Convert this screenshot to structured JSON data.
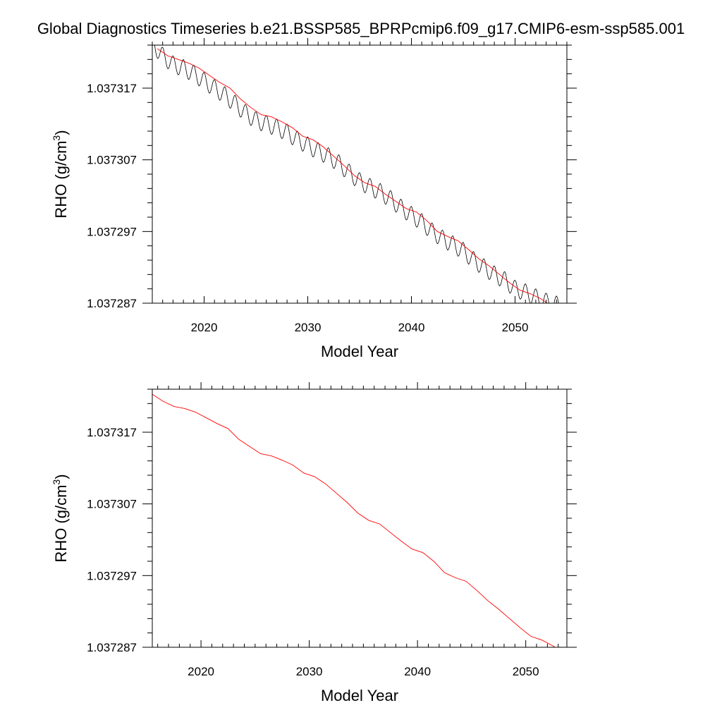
{
  "title": "Global Diagnostics Timeseries b.e21.BSSP585_BPRPcmip6.f09_g17.CMIP6-esm-ssp585.001",
  "chart_data": [
    {
      "type": "line",
      "xlabel": "Model Year",
      "ylabel_main": "RHO (g/cm",
      "ylabel_sup": "3",
      "ylabel_close": ")",
      "xlim": [
        2015,
        2055
      ],
      "ylim": [
        1.037287,
        1.037323
      ],
      "xticks": [
        2020,
        2030,
        2040,
        2050
      ],
      "xtick_labels": [
        "2020",
        "2030",
        "2040",
        "2050"
      ],
      "yticks": [
        1.037287,
        1.037297,
        1.037307,
        1.037317
      ],
      "ytick_labels": [
        "1.037287",
        "1.037297",
        "1.037307",
        "1.037317"
      ],
      "series": [
        {
          "kind": "monthly",
          "color": "#000000",
          "seasonal_amplitude": 1.2e-06,
          "x_range": [
            2015,
            2055
          ],
          "trend": [
            [
              2015,
              1.0373232
            ],
            [
              2016,
              1.0373215
            ],
            [
              2017,
              1.0373203
            ],
            [
              2018,
              1.0373198
            ],
            [
              2019,
              1.037319
            ],
            [
              2020,
              1.037318
            ],
            [
              2021,
              1.037317
            ],
            [
              2022,
              1.037316
            ],
            [
              2023,
              1.0373148
            ],
            [
              2024,
              1.0373135
            ],
            [
              2025,
              1.0373125
            ],
            [
              2026,
              1.037312
            ],
            [
              2027,
              1.0373115
            ],
            [
              2028,
              1.0373108
            ],
            [
              2029,
              1.0373098
            ],
            [
              2030,
              1.037309
            ],
            [
              2031,
              1.0373082
            ],
            [
              2032,
              1.0373075
            ],
            [
              2033,
              1.0373065
            ],
            [
              2034,
              1.0373052
            ],
            [
              2035,
              1.037304
            ],
            [
              2036,
              1.0373032
            ],
            [
              2037,
              1.0373025
            ],
            [
              2038,
              1.0373015
            ],
            [
              2039,
              1.0373003
            ],
            [
              2040,
              1.0372993
            ],
            [
              2041,
              1.0372983
            ],
            [
              2042,
              1.037297
            ],
            [
              2043,
              1.037296
            ],
            [
              2044,
              1.0372952
            ],
            [
              2045,
              1.0372943
            ],
            [
              2046,
              1.037293
            ],
            [
              2047,
              1.037292
            ],
            [
              2048,
              1.037291
            ],
            [
              2049,
              1.0372902
            ],
            [
              2050,
              1.037289
            ],
            [
              2051,
              1.0372885
            ],
            [
              2052,
              1.0372878
            ],
            [
              2053,
              1.0372872
            ],
            [
              2054,
              1.0372868
            ],
            [
              2055,
              1.0372858
            ]
          ]
        },
        {
          "kind": "annual",
          "color": "#ff0000",
          "points": [
            [
              2015.5,
              1.0373225
            ],
            [
              2016.5,
              1.0373215
            ],
            [
              2017.5,
              1.037321
            ],
            [
              2018.5,
              1.0373205
            ],
            [
              2019.5,
              1.0373198
            ],
            [
              2020.5,
              1.0373188
            ],
            [
              2021.5,
              1.0373178
            ],
            [
              2022.5,
              1.037317
            ],
            [
              2023.5,
              1.0373155
            ],
            [
              2024.5,
              1.0373143
            ],
            [
              2025.5,
              1.0373133
            ],
            [
              2026.5,
              1.037313
            ],
            [
              2027.5,
              1.0373123
            ],
            [
              2028.5,
              1.0373115
            ],
            [
              2029.5,
              1.0373103
            ],
            [
              2030.5,
              1.0373098
            ],
            [
              2031.5,
              1.0373088
            ],
            [
              2032.5,
              1.0373075
            ],
            [
              2033.5,
              1.0373062
            ],
            [
              2034.5,
              1.0373048
            ],
            [
              2035.5,
              1.0373038
            ],
            [
              2036.5,
              1.0373033
            ],
            [
              2037.5,
              1.0373022
            ],
            [
              2038.5,
              1.0373012
            ],
            [
              2039.5,
              1.0373002
            ],
            [
              2040.5,
              1.0372997
            ],
            [
              2041.5,
              1.0372985
            ],
            [
              2042.5,
              1.037297
            ],
            [
              2043.5,
              1.0372963
            ],
            [
              2044.5,
              1.0372957
            ],
            [
              2045.5,
              1.0372945
            ],
            [
              2046.5,
              1.0372932
            ],
            [
              2047.5,
              1.0372922
            ],
            [
              2048.5,
              1.037291
            ],
            [
              2049.5,
              1.0372898
            ],
            [
              2050.5,
              1.0372888
            ],
            [
              2051.5,
              1.0372883
            ],
            [
              2052.5,
              1.0372876
            ],
            [
              2053.5,
              1.0372866
            ]
          ]
        }
      ]
    },
    {
      "type": "line",
      "xlabel": "Model Year",
      "ylabel_main": "RHO (g/cm",
      "ylabel_sup": "3",
      "ylabel_close": ")",
      "xlim": [
        2015.5,
        2053.8
      ],
      "ylim": [
        1.037287,
        1.037323
      ],
      "xticks": [
        2020,
        2030,
        2040,
        2050
      ],
      "xtick_labels": [
        "2020",
        "2030",
        "2040",
        "2050"
      ],
      "yticks": [
        1.037287,
        1.037297,
        1.037307,
        1.037317
      ],
      "ytick_labels": [
        "1.037287",
        "1.037297",
        "1.037307",
        "1.037317"
      ],
      "series": [
        {
          "kind": "annual",
          "color": "#ff0000",
          "points": [
            [
              2015.5,
              1.0373223
            ],
            [
              2016.5,
              1.0373213
            ],
            [
              2017.5,
              1.0373206
            ],
            [
              2018.5,
              1.0373203
            ],
            [
              2019.5,
              1.0373198
            ],
            [
              2020.5,
              1.037319
            ],
            [
              2021.5,
              1.0373182
            ],
            [
              2022.5,
              1.0373175
            ],
            [
              2023.5,
              1.037316
            ],
            [
              2024.5,
              1.037315
            ],
            [
              2025.5,
              1.037314
            ],
            [
              2026.5,
              1.0373137
            ],
            [
              2027.5,
              1.0373131
            ],
            [
              2028.5,
              1.0373124
            ],
            [
              2029.5,
              1.0373113
            ],
            [
              2030.5,
              1.0373108
            ],
            [
              2031.5,
              1.0373098
            ],
            [
              2032.5,
              1.0373085
            ],
            [
              2033.5,
              1.0373072
            ],
            [
              2034.5,
              1.0373057
            ],
            [
              2035.5,
              1.0373047
            ],
            [
              2036.5,
              1.0373042
            ],
            [
              2037.5,
              1.037303
            ],
            [
              2038.5,
              1.0373018
            ],
            [
              2039.5,
              1.0373007
            ],
            [
              2040.5,
              1.0373002
            ],
            [
              2041.5,
              1.037299
            ],
            [
              2042.5,
              1.0372974
            ],
            [
              2043.5,
              1.0372967
            ],
            [
              2044.5,
              1.0372962
            ],
            [
              2045.5,
              1.0372949
            ],
            [
              2046.5,
              1.0372935
            ],
            [
              2047.5,
              1.0372923
            ],
            [
              2048.5,
              1.037291
            ],
            [
              2049.5,
              1.0372897
            ],
            [
              2050.5,
              1.0372885
            ],
            [
              2051.5,
              1.037288
            ],
            [
              2052.5,
              1.0372872
            ],
            [
              2053.5,
              1.0372862
            ]
          ]
        }
      ]
    }
  ]
}
